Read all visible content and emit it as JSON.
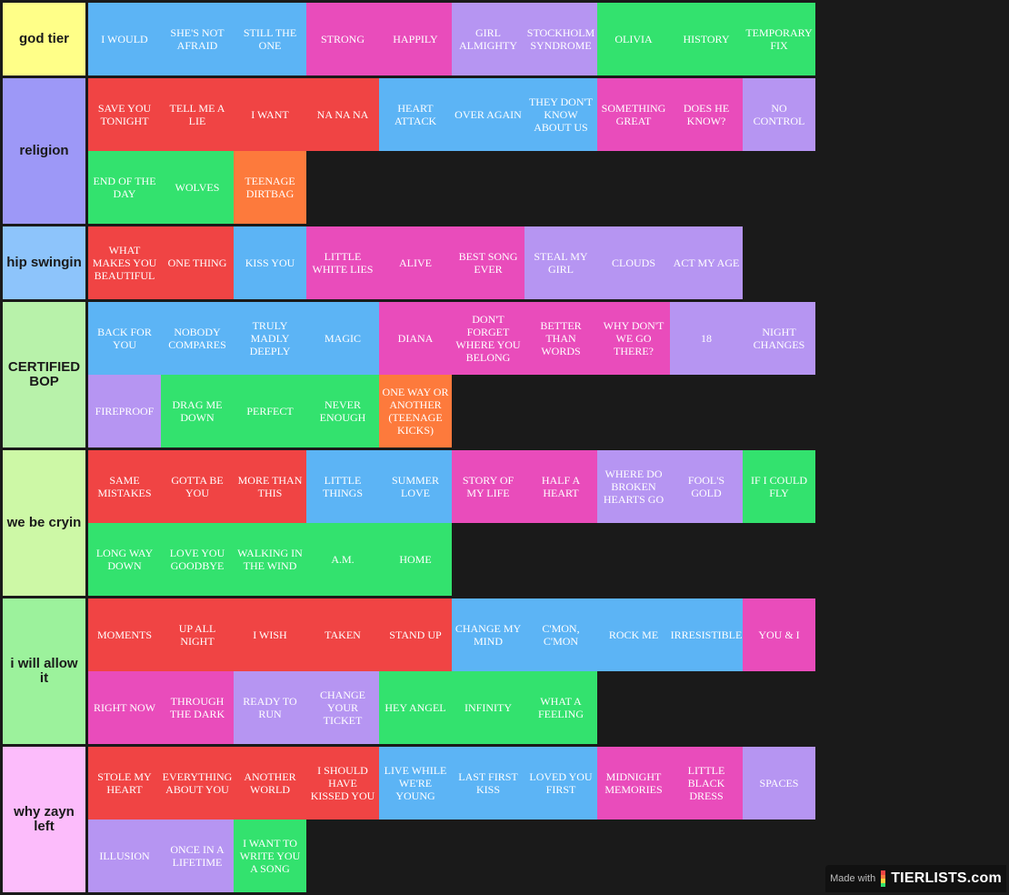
{
  "colors": {
    "blue": "#5cb4f5",
    "pink": "#e94cbb",
    "lavender": "#b695f2",
    "green": "#33e26e",
    "red": "#f04444",
    "orange": "#fd7a3c",
    "background": "#1a1a1a"
  },
  "tiers": [
    {
      "label": "god tier",
      "color": "#ffff88",
      "items": [
        {
          "text": "I WOULD",
          "color": "blue"
        },
        {
          "text": "SHE'S NOT AFRAID",
          "color": "blue"
        },
        {
          "text": "STILL THE ONE",
          "color": "blue"
        },
        {
          "text": "STRONG",
          "color": "pink"
        },
        {
          "text": "HAPPILY",
          "color": "pink"
        },
        {
          "text": "GIRL ALMIGHTY",
          "color": "lavender"
        },
        {
          "text": "STOCKHOLM SYNDROME",
          "color": "lavender"
        },
        {
          "text": "OLIVIA",
          "color": "green"
        },
        {
          "text": "HISTORY",
          "color": "green"
        },
        {
          "text": "TEMPORARY FIX",
          "color": "green"
        }
      ]
    },
    {
      "label": "religion",
      "color": "#9d98f7",
      "items": [
        {
          "text": "SAVE YOU TONIGHT",
          "color": "red"
        },
        {
          "text": "TELL ME A LIE",
          "color": "red"
        },
        {
          "text": "I WANT",
          "color": "red"
        },
        {
          "text": "NA NA NA",
          "color": "red"
        },
        {
          "text": "HEART ATTACK",
          "color": "blue"
        },
        {
          "text": "OVER AGAIN",
          "color": "blue"
        },
        {
          "text": "THEY DON'T KNOW ABOUT US",
          "color": "blue"
        },
        {
          "text": "SOMETHING GREAT",
          "color": "pink"
        },
        {
          "text": "DOES HE KNOW?",
          "color": "pink"
        },
        {
          "text": "NO CONTROL",
          "color": "lavender"
        },
        {
          "text": "END OF THE DAY",
          "color": "green"
        },
        {
          "text": "WOLVES",
          "color": "green"
        },
        {
          "text": "TEENAGE DIRTBAG",
          "color": "orange"
        }
      ]
    },
    {
      "label": "hip swingin",
      "color": "#8dc4fb",
      "items": [
        {
          "text": "WHAT MAKES YOU BEAUTIFUL",
          "color": "red"
        },
        {
          "text": "ONE THING",
          "color": "red"
        },
        {
          "text": "KISS YOU",
          "color": "blue"
        },
        {
          "text": "LITTLE WHITE LIES",
          "color": "pink"
        },
        {
          "text": "ALIVE",
          "color": "pink"
        },
        {
          "text": "BEST SONG EVER",
          "color": "pink"
        },
        {
          "text": "STEAL MY GIRL",
          "color": "lavender"
        },
        {
          "text": "CLOUDS",
          "color": "lavender"
        },
        {
          "text": "ACT MY AGE",
          "color": "lavender"
        }
      ]
    },
    {
      "label": "CERTIFIED BOP",
      "color": "#b8f2aa",
      "items": [
        {
          "text": "BACK FOR YOU",
          "color": "blue"
        },
        {
          "text": "NOBODY COMPARES",
          "color": "blue"
        },
        {
          "text": "TRULY MADLY DEEPLY",
          "color": "blue"
        },
        {
          "text": "MAGIC",
          "color": "blue"
        },
        {
          "text": "DIANA",
          "color": "pink"
        },
        {
          "text": "DON'T FORGET WHERE YOU BELONG",
          "color": "pink"
        },
        {
          "text": "BETTER THAN WORDS",
          "color": "pink"
        },
        {
          "text": "WHY DON'T WE GO THERE?",
          "color": "pink"
        },
        {
          "text": "18",
          "color": "lavender"
        },
        {
          "text": "NIGHT CHANGES",
          "color": "lavender"
        },
        {
          "text": "FIREPROOF",
          "color": "lavender"
        },
        {
          "text": "DRAG ME DOWN",
          "color": "green"
        },
        {
          "text": "PERFECT",
          "color": "green"
        },
        {
          "text": "NEVER ENOUGH",
          "color": "green"
        },
        {
          "text": "ONE WAY OR ANOTHER (TEENAGE KICKS)",
          "color": "orange"
        }
      ]
    },
    {
      "label": "we be cryin",
      "color": "#cdf8a6",
      "items": [
        {
          "text": "SAME MISTAKES",
          "color": "red"
        },
        {
          "text": "GOTTA BE YOU",
          "color": "red"
        },
        {
          "text": "MORE THAN THIS",
          "color": "red"
        },
        {
          "text": "LITTLE THINGS",
          "color": "blue"
        },
        {
          "text": "SUMMER LOVE",
          "color": "blue"
        },
        {
          "text": "STORY OF MY LIFE",
          "color": "pink"
        },
        {
          "text": "HALF A HEART",
          "color": "pink"
        },
        {
          "text": "WHERE DO BROKEN HEARTS GO",
          "color": "lavender"
        },
        {
          "text": "FOOL'S GOLD",
          "color": "lavender"
        },
        {
          "text": "IF I COULD FLY",
          "color": "green"
        },
        {
          "text": "LONG WAY DOWN",
          "color": "green"
        },
        {
          "text": "LOVE YOU GOODBYE",
          "color": "green"
        },
        {
          "text": "WALKING IN THE WIND",
          "color": "green"
        },
        {
          "text": "A.M.",
          "color": "green"
        },
        {
          "text": "HOME",
          "color": "green"
        }
      ]
    },
    {
      "label": "i will allow it",
      "color": "#9cf29c",
      "items": [
        {
          "text": "MOMENTS",
          "color": "red"
        },
        {
          "text": "UP ALL NIGHT",
          "color": "red"
        },
        {
          "text": "I WISH",
          "color": "red"
        },
        {
          "text": "TAKEN",
          "color": "red"
        },
        {
          "text": "STAND UP",
          "color": "red"
        },
        {
          "text": "CHANGE MY MIND",
          "color": "blue"
        },
        {
          "text": "C'MON, C'MON",
          "color": "blue"
        },
        {
          "text": "ROCK ME",
          "color": "blue"
        },
        {
          "text": "IRRESISTIBLE",
          "color": "blue"
        },
        {
          "text": "YOU & I",
          "color": "pink"
        },
        {
          "text": "RIGHT NOW",
          "color": "pink"
        },
        {
          "text": "THROUGH THE DARK",
          "color": "pink"
        },
        {
          "text": "READY TO RUN",
          "color": "lavender"
        },
        {
          "text": "CHANGE YOUR TICKET",
          "color": "lavender"
        },
        {
          "text": "HEY ANGEL",
          "color": "green"
        },
        {
          "text": "INFINITY",
          "color": "green"
        },
        {
          "text": "WHAT A FEELING",
          "color": "green"
        }
      ]
    },
    {
      "label": "why zayn left",
      "color": "#fcbcfb",
      "items": [
        {
          "text": "STOLE MY HEART",
          "color": "red"
        },
        {
          "text": "EVERYTHING ABOUT YOU",
          "color": "red"
        },
        {
          "text": "ANOTHER WORLD",
          "color": "red"
        },
        {
          "text": "I SHOULD HAVE KISSED YOU",
          "color": "red"
        },
        {
          "text": "LIVE WHILE WE'RE YOUNG",
          "color": "blue"
        },
        {
          "text": "LAST FIRST KISS",
          "color": "blue"
        },
        {
          "text": "LOVED YOU FIRST",
          "color": "blue"
        },
        {
          "text": "MIDNIGHT MEMORIES",
          "color": "pink"
        },
        {
          "text": "LITTLE BLACK DRESS",
          "color": "pink"
        },
        {
          "text": "SPACES",
          "color": "lavender"
        },
        {
          "text": "ILLUSION",
          "color": "lavender"
        },
        {
          "text": "ONCE IN A LIFETIME",
          "color": "lavender"
        },
        {
          "text": "I WANT TO WRITE YOU A SONG",
          "color": "green"
        }
      ]
    }
  ],
  "watermark": {
    "made_with": "Made with",
    "brand": "TIERLISTS.com"
  }
}
